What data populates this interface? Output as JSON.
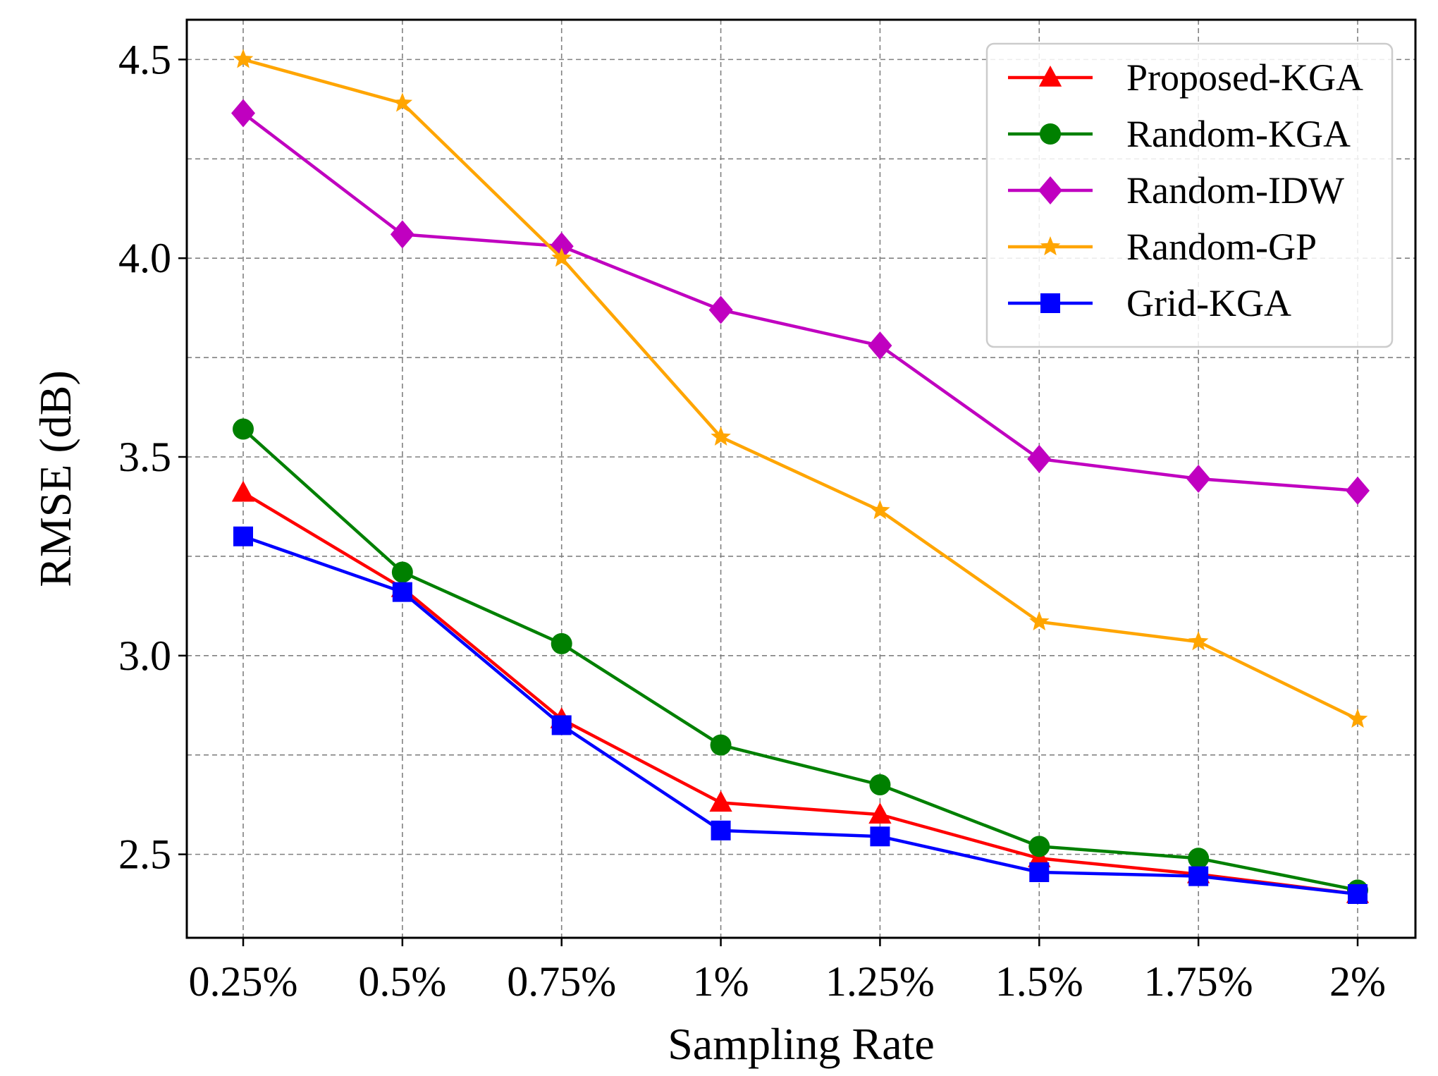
{
  "chart_data": {
    "type": "line",
    "title": "",
    "xlabel": "Sampling Rate",
    "ylabel": "RMSE (dB)",
    "categories": [
      "0.25%",
      "0.5%",
      "0.75%",
      "1%",
      "1.25%",
      "1.5%",
      "1.75%",
      "2%"
    ],
    "ylim": [
      2.29,
      4.6
    ],
    "yticks": [
      2.5,
      3.0,
      3.5,
      4.0,
      4.5
    ],
    "ytick_labels": [
      "2.5",
      "3.0",
      "3.5",
      "4.0",
      "4.5"
    ],
    "minor_grid_y": [
      2.75,
      3.25,
      3.75,
      4.25
    ],
    "grid": true,
    "legend_position": "top-right",
    "series": [
      {
        "name": "Proposed-KGA",
        "color": "#ff0000",
        "marker": "triangle",
        "values": [
          3.41,
          3.17,
          2.84,
          2.63,
          2.6,
          2.49,
          2.45,
          2.4
        ]
      },
      {
        "name": "Random-KGA",
        "color": "#008000",
        "marker": "circle",
        "values": [
          3.57,
          3.21,
          3.03,
          2.775,
          2.675,
          2.52,
          2.49,
          2.41
        ]
      },
      {
        "name": "Random-IDW",
        "color": "#c000c0",
        "marker": "diamond",
        "values": [
          4.365,
          4.06,
          4.03,
          3.87,
          3.78,
          3.495,
          3.445,
          3.415
        ]
      },
      {
        "name": "Random-GP",
        "color": "#ffa500",
        "marker": "star",
        "values": [
          4.5,
          4.39,
          4.0,
          3.55,
          3.365,
          3.085,
          3.035,
          2.84
        ]
      },
      {
        "name": "Grid-KGA",
        "color": "#0000ff",
        "marker": "square",
        "values": [
          3.3,
          3.16,
          2.825,
          2.56,
          2.545,
          2.455,
          2.445,
          2.4
        ]
      }
    ]
  }
}
